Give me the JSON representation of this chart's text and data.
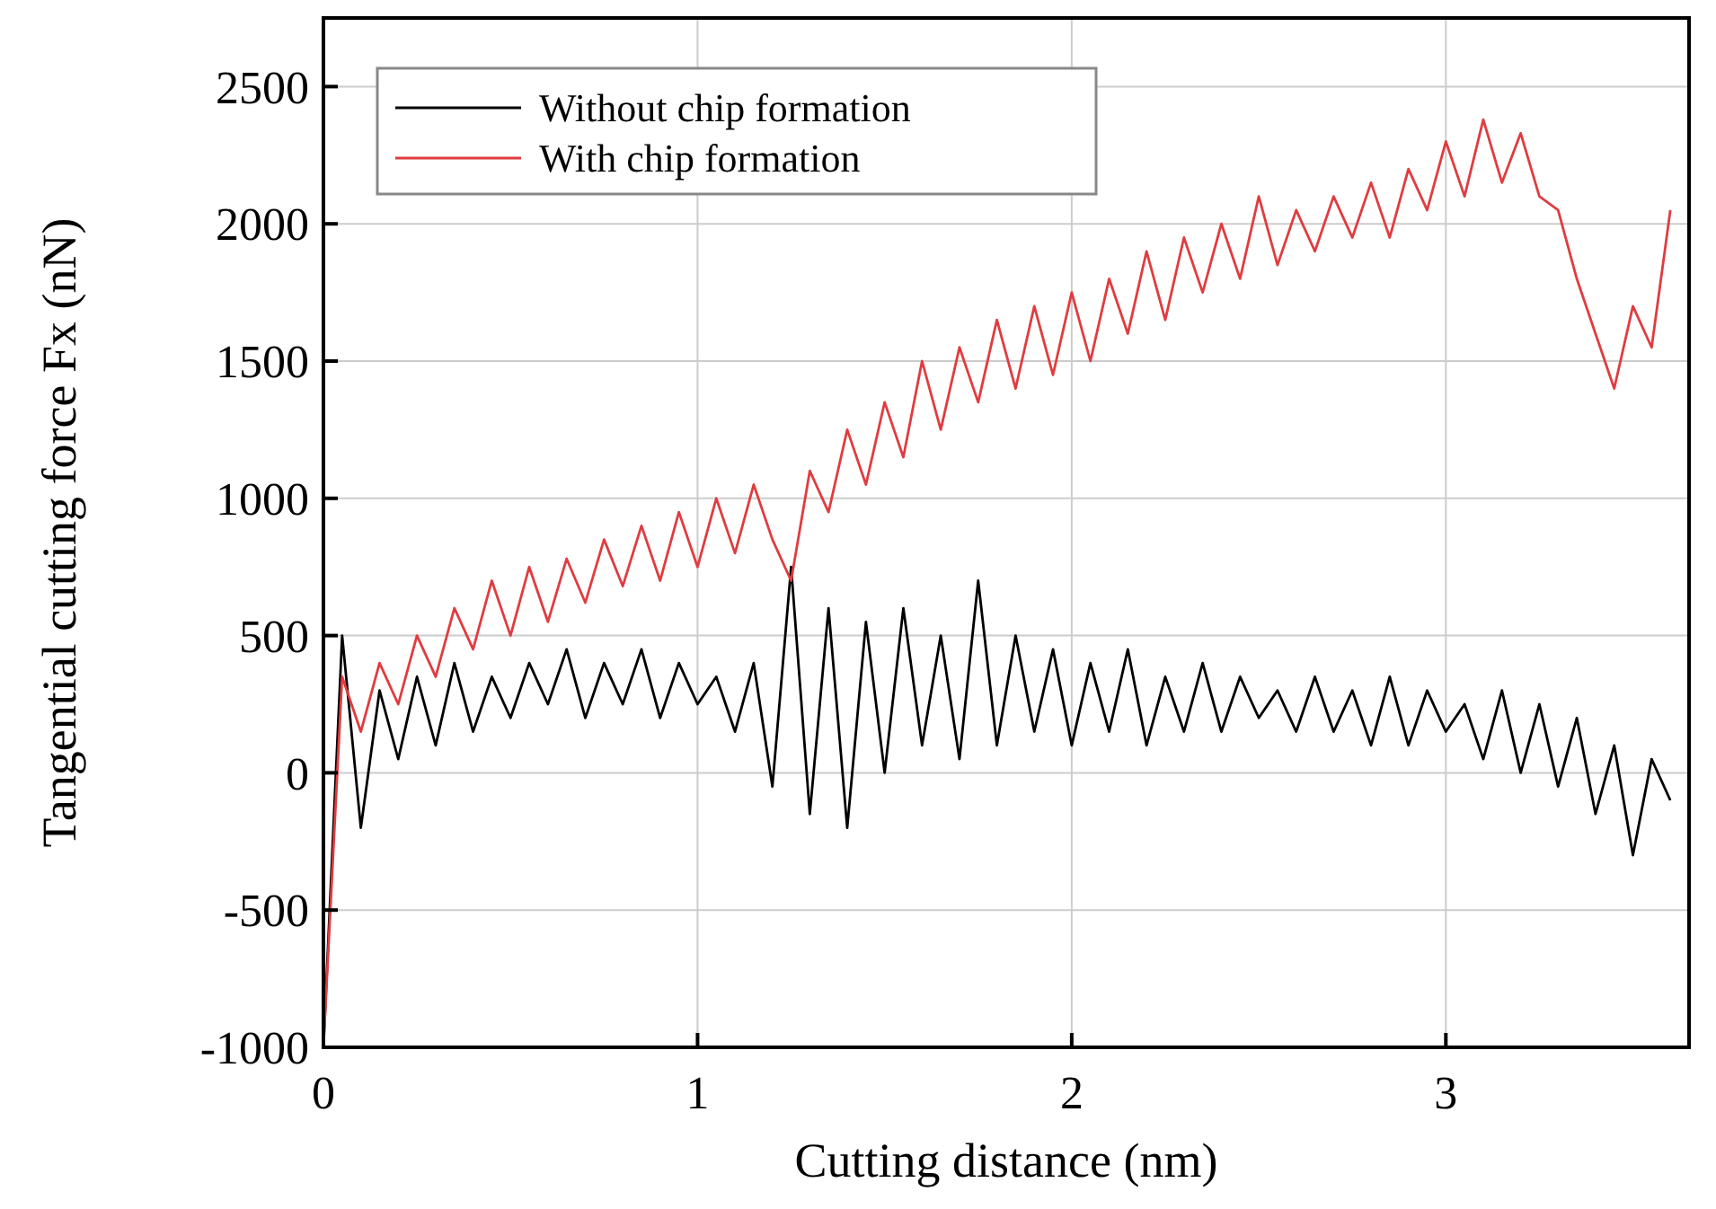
{
  "chart_data": {
    "type": "line",
    "xlabel": "Cutting distance (nm)",
    "ylabel": "Tangential cutting force Fx (nN)",
    "x": [
      0,
      0.05,
      0.1,
      0.15,
      0.2,
      0.25,
      0.3,
      0.35,
      0.4,
      0.45,
      0.5,
      0.55,
      0.6,
      0.65,
      0.7,
      0.75,
      0.8,
      0.85,
      0.9,
      0.95,
      1,
      1.05,
      1.1,
      1.15,
      1.2,
      1.25,
      1.3,
      1.35,
      1.4,
      1.45,
      1.5,
      1.55,
      1.6,
      1.65,
      1.7,
      1.75,
      1.8,
      1.85,
      1.9,
      1.95,
      2,
      2.05,
      2.1,
      2.15,
      2.2,
      2.25,
      2.3,
      2.35,
      2.4,
      2.45,
      2.5,
      2.55,
      2.6,
      2.65,
      2.7,
      2.75,
      2.8,
      2.85,
      2.9,
      2.95,
      3,
      3.05,
      3.1,
      3.15,
      3.2,
      3.25,
      3.3,
      3.35,
      3.4,
      3.45,
      3.5,
      3.55,
      3.6
    ],
    "series": [
      {
        "name": "Without chip formation",
        "color": "#000000",
        "values": [
          -1000,
          500,
          -200,
          300,
          50,
          350,
          100,
          400,
          150,
          350,
          200,
          400,
          250,
          450,
          200,
          400,
          250,
          450,
          200,
          400,
          250,
          350,
          150,
          400,
          -50,
          750,
          -150,
          600,
          -200,
          550,
          0,
          600,
          100,
          500,
          50,
          700,
          100,
          500,
          150,
          450,
          100,
          400,
          150,
          450,
          100,
          350,
          150,
          400,
          150,
          350,
          200,
          300,
          150,
          350,
          150,
          300,
          100,
          350,
          100,
          300,
          150,
          250,
          50,
          300,
          0,
          250,
          -50,
          200,
          -150,
          100,
          -300,
          50,
          -100
        ]
      },
      {
        "name": "With chip formation",
        "color": "#e03c40",
        "values": [
          -1000,
          350,
          150,
          400,
          250,
          500,
          350,
          600,
          450,
          700,
          500,
          750,
          550,
          780,
          620,
          850,
          680,
          900,
          700,
          950,
          750,
          1000,
          800,
          1050,
          850,
          700,
          1100,
          950,
          1250,
          1050,
          1350,
          1150,
          1500,
          1250,
          1550,
          1350,
          1650,
          1400,
          1700,
          1450,
          1750,
          1500,
          1800,
          1600,
          1900,
          1650,
          1950,
          1750,
          2000,
          1800,
          2100,
          1850,
          2050,
          1900,
          2100,
          1950,
          2150,
          1950,
          2200,
          2050,
          2300,
          2100,
          2380,
          2150,
          2330,
          2100,
          2050,
          1800,
          1600,
          1400,
          1700,
          1550,
          2050
        ]
      }
    ],
    "xlim": [
      0,
      3.65
    ],
    "ylim": [
      -1000,
      2750
    ],
    "xticks": [
      0,
      1,
      2,
      3
    ],
    "yticks": [
      -1000,
      -500,
      0,
      500,
      1000,
      1500,
      2000,
      2500
    ],
    "grid": true,
    "legend": "top left",
    "marker": "none",
    "line_style": "solid"
  }
}
